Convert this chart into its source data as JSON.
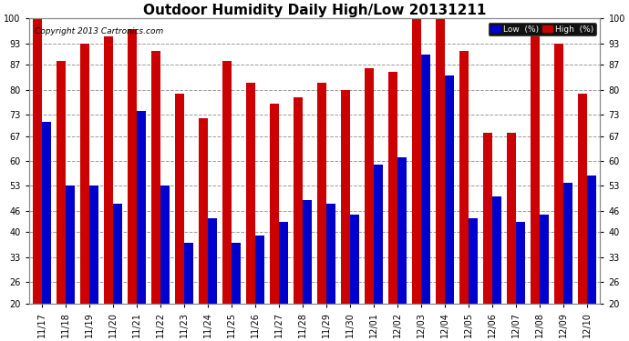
{
  "title": "Outdoor Humidity Daily High/Low 20131211",
  "copyright": "Copyright 2013 Cartronics.com",
  "legend_low": "Low  (%)",
  "legend_high": "High  (%)",
  "dates": [
    "11/17",
    "11/18",
    "11/19",
    "11/20",
    "11/21",
    "11/22",
    "11/23",
    "11/24",
    "11/25",
    "11/26",
    "11/27",
    "11/28",
    "11/29",
    "11/30",
    "12/01",
    "12/02",
    "12/03",
    "12/04",
    "12/05",
    "12/06",
    "12/07",
    "12/08",
    "12/09",
    "12/10"
  ],
  "high": [
    100,
    88,
    93,
    95,
    97,
    91,
    79,
    72,
    88,
    82,
    76,
    78,
    82,
    80,
    86,
    85,
    100,
    100,
    91,
    68,
    68,
    95,
    93,
    79
  ],
  "low": [
    71,
    53,
    53,
    48,
    74,
    53,
    37,
    44,
    37,
    39,
    43,
    49,
    48,
    45,
    59,
    61,
    90,
    84,
    44,
    50,
    43,
    45,
    54,
    56
  ],
  "ylim_min": 20,
  "ylim_max": 100,
  "yticks": [
    20,
    26,
    33,
    40,
    46,
    53,
    60,
    67,
    73,
    80,
    87,
    93,
    100
  ],
  "bar_width": 0.38,
  "color_low": "#0000cc",
  "color_high": "#cc0000",
  "bg_color": "#ffffff",
  "grid_color": "#999999",
  "title_fontsize": 11,
  "tick_fontsize": 7,
  "copyright_fontsize": 6.5
}
